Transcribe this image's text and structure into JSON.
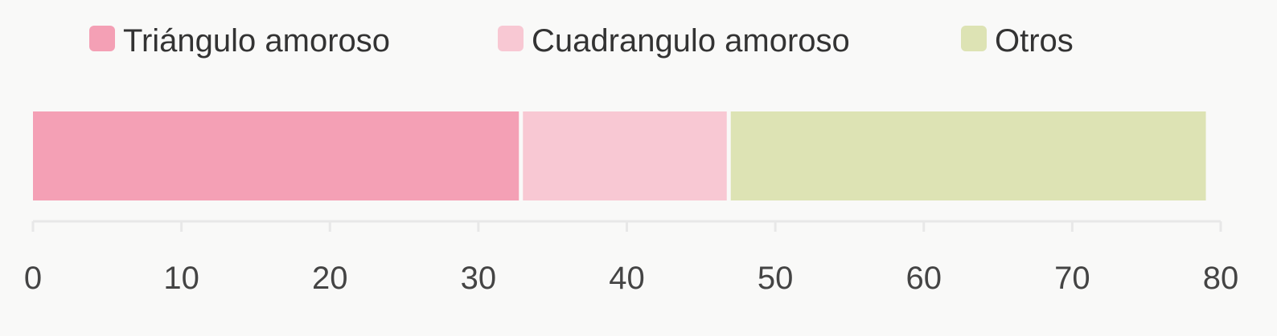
{
  "chart_data": {
    "type": "bar",
    "orientation": "horizontal",
    "stacked": true,
    "categories": [
      ""
    ],
    "series": [
      {
        "name": "Triángulo amoroso",
        "values": [
          33
        ],
        "color": "#f4a0b5"
      },
      {
        "name": "Cuadrangulo amoroso",
        "values": [
          14
        ],
        "color": "#f8c8d3"
      },
      {
        "name": "Otros",
        "values": [
          32
        ],
        "color": "#dde3b4"
      }
    ],
    "xlim": [
      0,
      80
    ],
    "xticks": [
      "0",
      "10",
      "20",
      "30",
      "40",
      "50",
      "60",
      "70",
      "80"
    ],
    "legend_position": "top",
    "grid": false
  }
}
